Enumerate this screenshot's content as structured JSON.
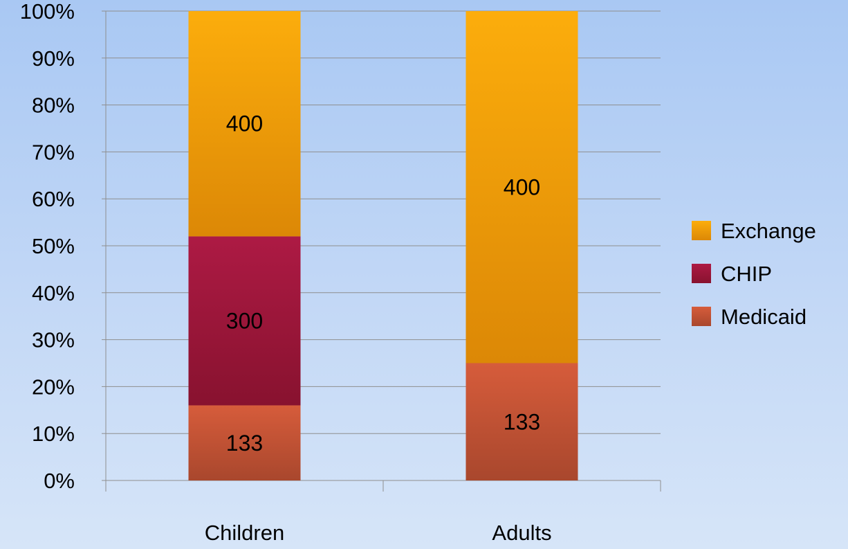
{
  "chart_data": {
    "type": "bar",
    "stacked": true,
    "percent_stacked": true,
    "categories": [
      "Children",
      "Adults"
    ],
    "series": [
      {
        "name": "Medicaid",
        "values": [
          16,
          25
        ],
        "labels": [
          "133",
          "133"
        ],
        "color": "#c9563a"
      },
      {
        "name": "CHIP",
        "values": [
          36,
          0
        ],
        "labels": [
          "300",
          ""
        ],
        "color": "#a3183f"
      },
      {
        "name": "Exchange",
        "values": [
          48,
          75
        ],
        "labels": [
          "400",
          "400"
        ],
        "color": "#f4a90c"
      }
    ],
    "y_ticks": [
      "0%",
      "10%",
      "20%",
      "30%",
      "40%",
      "50%",
      "60%",
      "70%",
      "80%",
      "90%",
      "100%"
    ],
    "ylim": [
      0,
      100
    ],
    "grid": true,
    "legend_position": "right",
    "legend_order": [
      "Exchange",
      "CHIP",
      "Medicaid"
    ]
  }
}
